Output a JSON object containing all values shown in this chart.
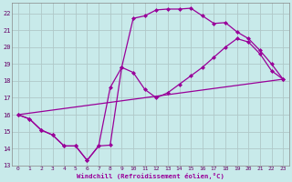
{
  "xlabel": "Windchill (Refroidissement éolien,°C)",
  "bg_color": "#c8eaea",
  "line_color": "#990099",
  "xlim": [
    -0.5,
    23.5
  ],
  "ylim": [
    13,
    22.6
  ],
  "yticks": [
    13,
    14,
    15,
    16,
    17,
    18,
    19,
    20,
    21,
    22
  ],
  "xticks": [
    0,
    1,
    2,
    3,
    4,
    5,
    6,
    7,
    8,
    9,
    10,
    11,
    12,
    13,
    14,
    15,
    16,
    17,
    18,
    19,
    20,
    21,
    22,
    23
  ],
  "series1_x": [
    0,
    1,
    2,
    3,
    4,
    5,
    6,
    7,
    8,
    9,
    10,
    11,
    12,
    13,
    14,
    15,
    16,
    17,
    18,
    19,
    20,
    21,
    22,
    23
  ],
  "series1_y": [
    16.0,
    15.75,
    15.1,
    14.8,
    14.15,
    14.15,
    13.3,
    14.15,
    14.2,
    18.8,
    21.7,
    21.85,
    22.2,
    22.25,
    22.25,
    22.3,
    21.85,
    21.4,
    21.45,
    20.9,
    20.5,
    19.8,
    19.0,
    18.1
  ],
  "series2_x": [
    0,
    1,
    2,
    3,
    4,
    5,
    6,
    7,
    8,
    9,
    10,
    11,
    12,
    13,
    14,
    15,
    16,
    17,
    18,
    19,
    20,
    21,
    22,
    23
  ],
  "series2_y": [
    16.0,
    15.75,
    15.1,
    14.8,
    14.15,
    14.15,
    13.3,
    14.15,
    17.6,
    18.8,
    18.5,
    17.5,
    17.0,
    17.3,
    17.8,
    18.3,
    18.8,
    19.4,
    20.0,
    20.5,
    20.3,
    19.6,
    18.6,
    18.1
  ],
  "series3_x": [
    0,
    23
  ],
  "series3_y": [
    16.0,
    18.1
  ],
  "grid_color": "#b0c8c8",
  "marker": "D",
  "marker_size": 2.5,
  "linewidth": 0.9
}
